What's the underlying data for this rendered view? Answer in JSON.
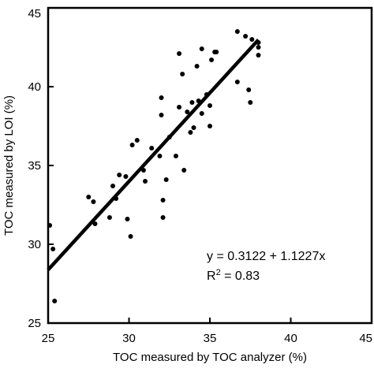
{
  "chart_data": {
    "type": "scatter",
    "title": "",
    "xlabel": "TOC measured by TOC analyzer (%)",
    "ylabel": "TOC measured by LOI (%)",
    "xlim": [
      25,
      45
    ],
    "ylim": [
      25,
      45
    ],
    "xticks": [
      25,
      30,
      35,
      40,
      45
    ],
    "yticks": [
      25,
      30,
      35,
      40,
      45
    ],
    "grid": false,
    "series": [
      {
        "points": [
          [
            25.1,
            31.2
          ],
          [
            25.3,
            29.7
          ],
          [
            25.4,
            26.4
          ],
          [
            27.5,
            33.0
          ],
          [
            27.8,
            32.7
          ],
          [
            27.9,
            31.3
          ],
          [
            28.8,
            31.7
          ],
          [
            29.0,
            33.7
          ],
          [
            29.2,
            32.9
          ],
          [
            29.4,
            34.4
          ],
          [
            29.8,
            34.3
          ],
          [
            29.9,
            31.6
          ],
          [
            30.1,
            30.5
          ],
          [
            30.2,
            36.3
          ],
          [
            30.5,
            36.6
          ],
          [
            30.9,
            34.7
          ],
          [
            31.0,
            34.0
          ],
          [
            31.4,
            36.1
          ],
          [
            31.9,
            35.6
          ],
          [
            32.0,
            38.2
          ],
          [
            32.0,
            39.3
          ],
          [
            32.1,
            32.8
          ],
          [
            32.1,
            31.7
          ],
          [
            32.3,
            34.1
          ],
          [
            32.5,
            36.8
          ],
          [
            32.9,
            35.6
          ],
          [
            33.1,
            38.7
          ],
          [
            33.1,
            42.1
          ],
          [
            33.3,
            40.8
          ],
          [
            33.4,
            34.7
          ],
          [
            33.6,
            38.4
          ],
          [
            33.8,
            37.1
          ],
          [
            33.9,
            39.0
          ],
          [
            34.0,
            37.4
          ],
          [
            34.2,
            41.3
          ],
          [
            34.3,
            39.1
          ],
          [
            34.5,
            42.4
          ],
          [
            34.5,
            38.3
          ],
          [
            34.8,
            39.5
          ],
          [
            35.0,
            38.8
          ],
          [
            35.0,
            37.5
          ],
          [
            35.1,
            41.7
          ],
          [
            35.3,
            42.2
          ],
          [
            35.4,
            42.2
          ],
          [
            36.7,
            43.5
          ],
          [
            36.7,
            40.3
          ],
          [
            37.2,
            43.2
          ],
          [
            37.4,
            39.8
          ],
          [
            37.5,
            39.0
          ],
          [
            37.6,
            43.0
          ],
          [
            38.0,
            42.8
          ],
          [
            38.0,
            42.5
          ],
          [
            38.0,
            42.0
          ]
        ]
      }
    ],
    "fit_line": {
      "intercept": 0.3122,
      "slope": 1.1227,
      "x_range": [
        25,
        38
      ]
    },
    "annotations": {
      "equation": "y = 0.3122 + 1.1227x",
      "r2_label": "R",
      "r2_exponent": "2",
      "r2_value": " = 0.83"
    }
  }
}
